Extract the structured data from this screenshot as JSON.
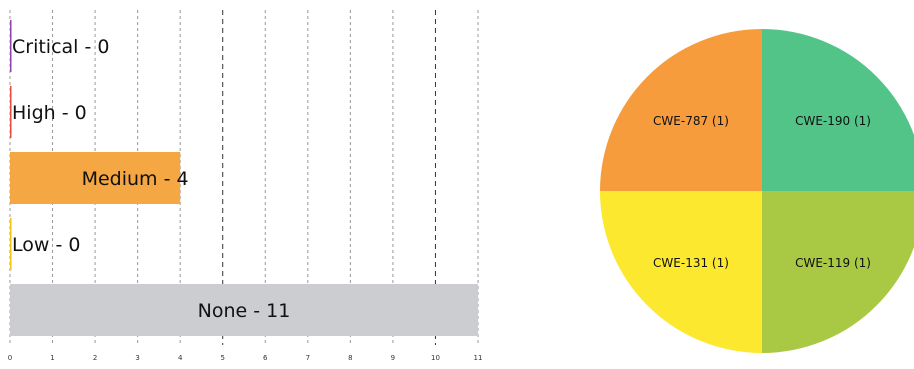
{
  "chart_data": [
    {
      "type": "bar",
      "orientation": "horizontal",
      "categories": [
        "Critical",
        "High",
        "Medium",
        "Low",
        "None"
      ],
      "values": [
        0,
        0,
        4,
        0,
        11
      ],
      "labels": [
        "Critical - 0",
        "High - 0",
        "Medium - 4",
        "Low - 0",
        "None - 11"
      ],
      "colors": [
        "#8e44ad",
        "#e74c3c",
        "#f4a742",
        "#f1c40f",
        "#cbcdd1"
      ],
      "xlim": [
        0,
        11
      ],
      "x_ticks": [
        "0",
        "1",
        "2",
        "3",
        "4",
        "5",
        "6",
        "7",
        "8",
        "9",
        "10",
        "11"
      ],
      "grid": true
    },
    {
      "type": "pie",
      "labels": [
        "CWE-190 (1)",
        "CWE-119 (1)",
        "CWE-131 (1)",
        "CWE-787 (1)"
      ],
      "values": [
        1,
        1,
        1,
        1
      ],
      "colors": [
        "#52c488",
        "#a9c843",
        "#fce82f",
        "#f69c3c"
      ]
    }
  ]
}
